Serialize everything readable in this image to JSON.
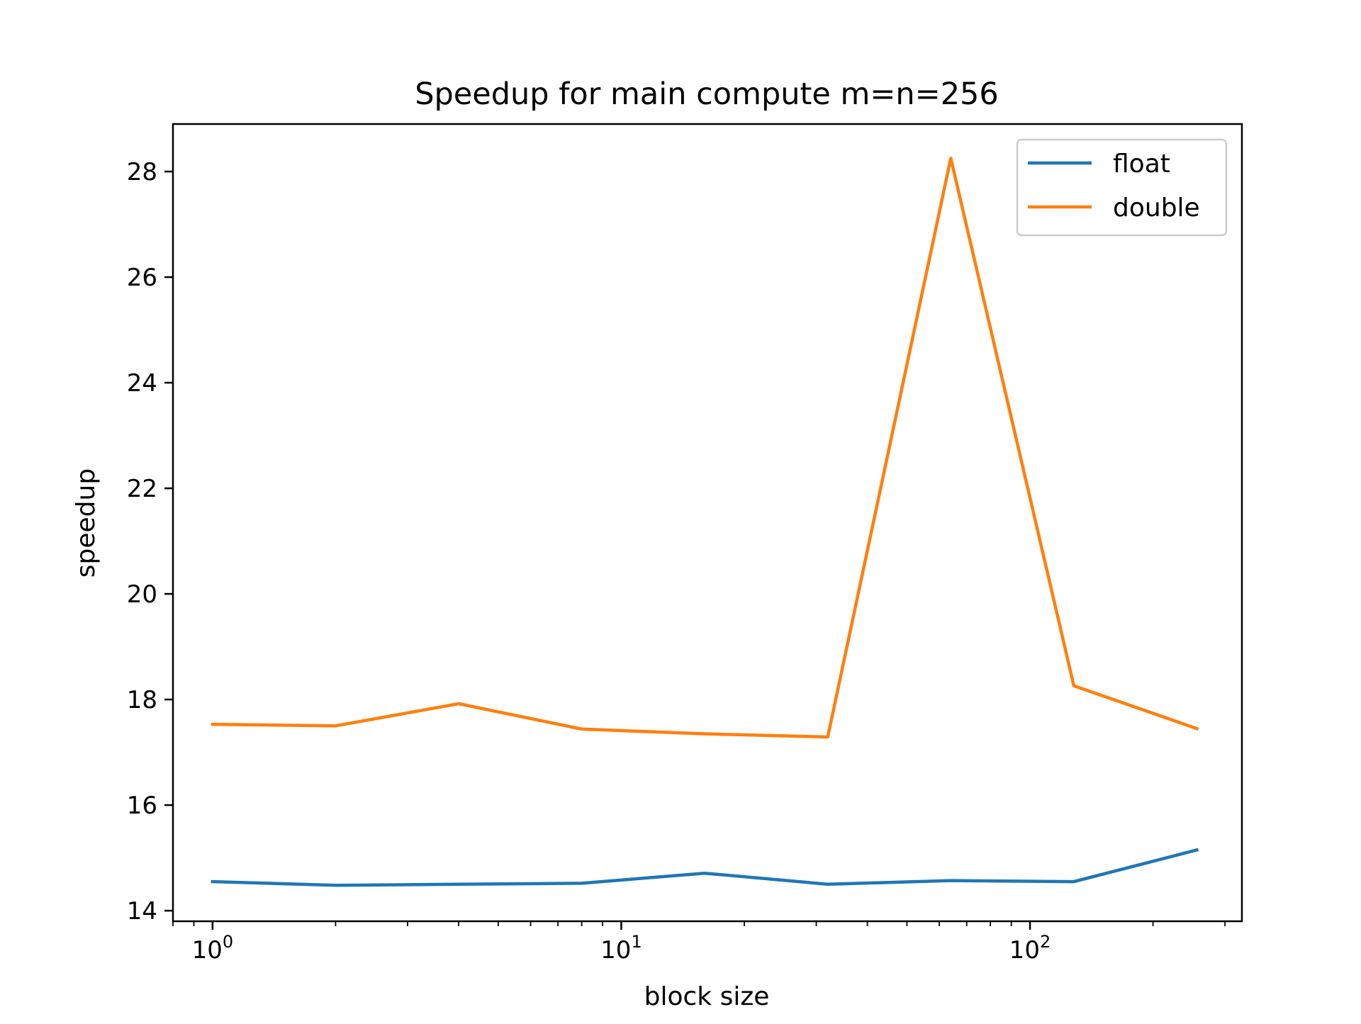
{
  "chart_data": {
    "type": "line",
    "title": "Speedup for main compute m=n=256",
    "xlabel": "block size",
    "ylabel": "speedup",
    "xscale": "log",
    "xlim": [
      0.8,
      330
    ],
    "ylim": [
      13.8,
      28.9
    ],
    "x": [
      1,
      2,
      4,
      8,
      16,
      32,
      64,
      128,
      256
    ],
    "x_ticks": [
      {
        "value": 1,
        "base": "10",
        "exp": "0"
      },
      {
        "value": 10,
        "base": "10",
        "exp": "1"
      },
      {
        "value": 100,
        "base": "10",
        "exp": "2"
      }
    ],
    "y_ticks": [
      14,
      16,
      18,
      20,
      22,
      24,
      26,
      28
    ],
    "grid": false,
    "legend_position": "top-right",
    "series": [
      {
        "name": "float",
        "color": "#1f77b4",
        "values": [
          14.55,
          14.48,
          14.5,
          14.52,
          14.71,
          14.5,
          14.57,
          14.55,
          15.15
        ]
      },
      {
        "name": "double",
        "color": "#ff7f0e",
        "values": [
          17.53,
          17.5,
          17.92,
          17.44,
          17.35,
          17.29,
          28.25,
          18.26,
          17.45
        ]
      }
    ]
  }
}
